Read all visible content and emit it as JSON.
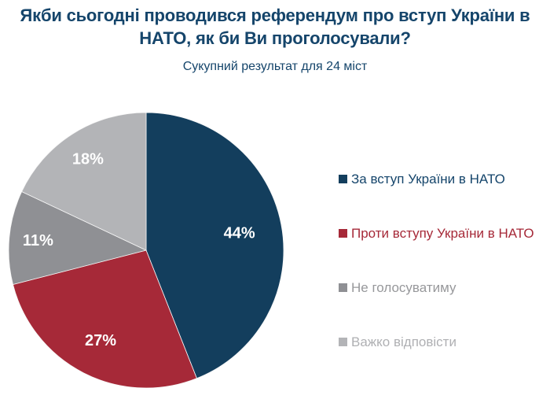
{
  "header": {
    "title": "Якби сьогодні проводився референдум про вступ України в НАТО, як би Ви проголосували?",
    "subtitle": "Сукупний результат для 24 міст"
  },
  "colors": {
    "title_text": "#15456B",
    "data_label_text": "#FFFFFF",
    "background": "#FFFFFF"
  },
  "chart_data": {
    "type": "pie",
    "title": "Якби сьогодні проводився референдум про вступ України в НАТО, як би Ви проголосували?",
    "subtitle": "Сукупний результат для 24 міст",
    "start_angle_deg": 0,
    "direction": "clockwise",
    "legend_position": "right",
    "slices": [
      {
        "label": "За вступ України в НАТО",
        "value": 44,
        "data_label": "44%",
        "color": "#133E5D",
        "legend_text_color": "#15456B"
      },
      {
        "label": "Проти вступу України в НАТО",
        "value": 27,
        "data_label": "27%",
        "color": "#A62938",
        "legend_text_color": "#A62938"
      },
      {
        "label": "Не голосуватиму",
        "value": 11,
        "data_label": "11%",
        "color": "#8F9094",
        "legend_text_color": "#97989B"
      },
      {
        "label": "Важко відповісти",
        "value": 18,
        "data_label": "18%",
        "color": "#B3B4B7",
        "legend_text_color": "#AFB0B3"
      }
    ]
  }
}
